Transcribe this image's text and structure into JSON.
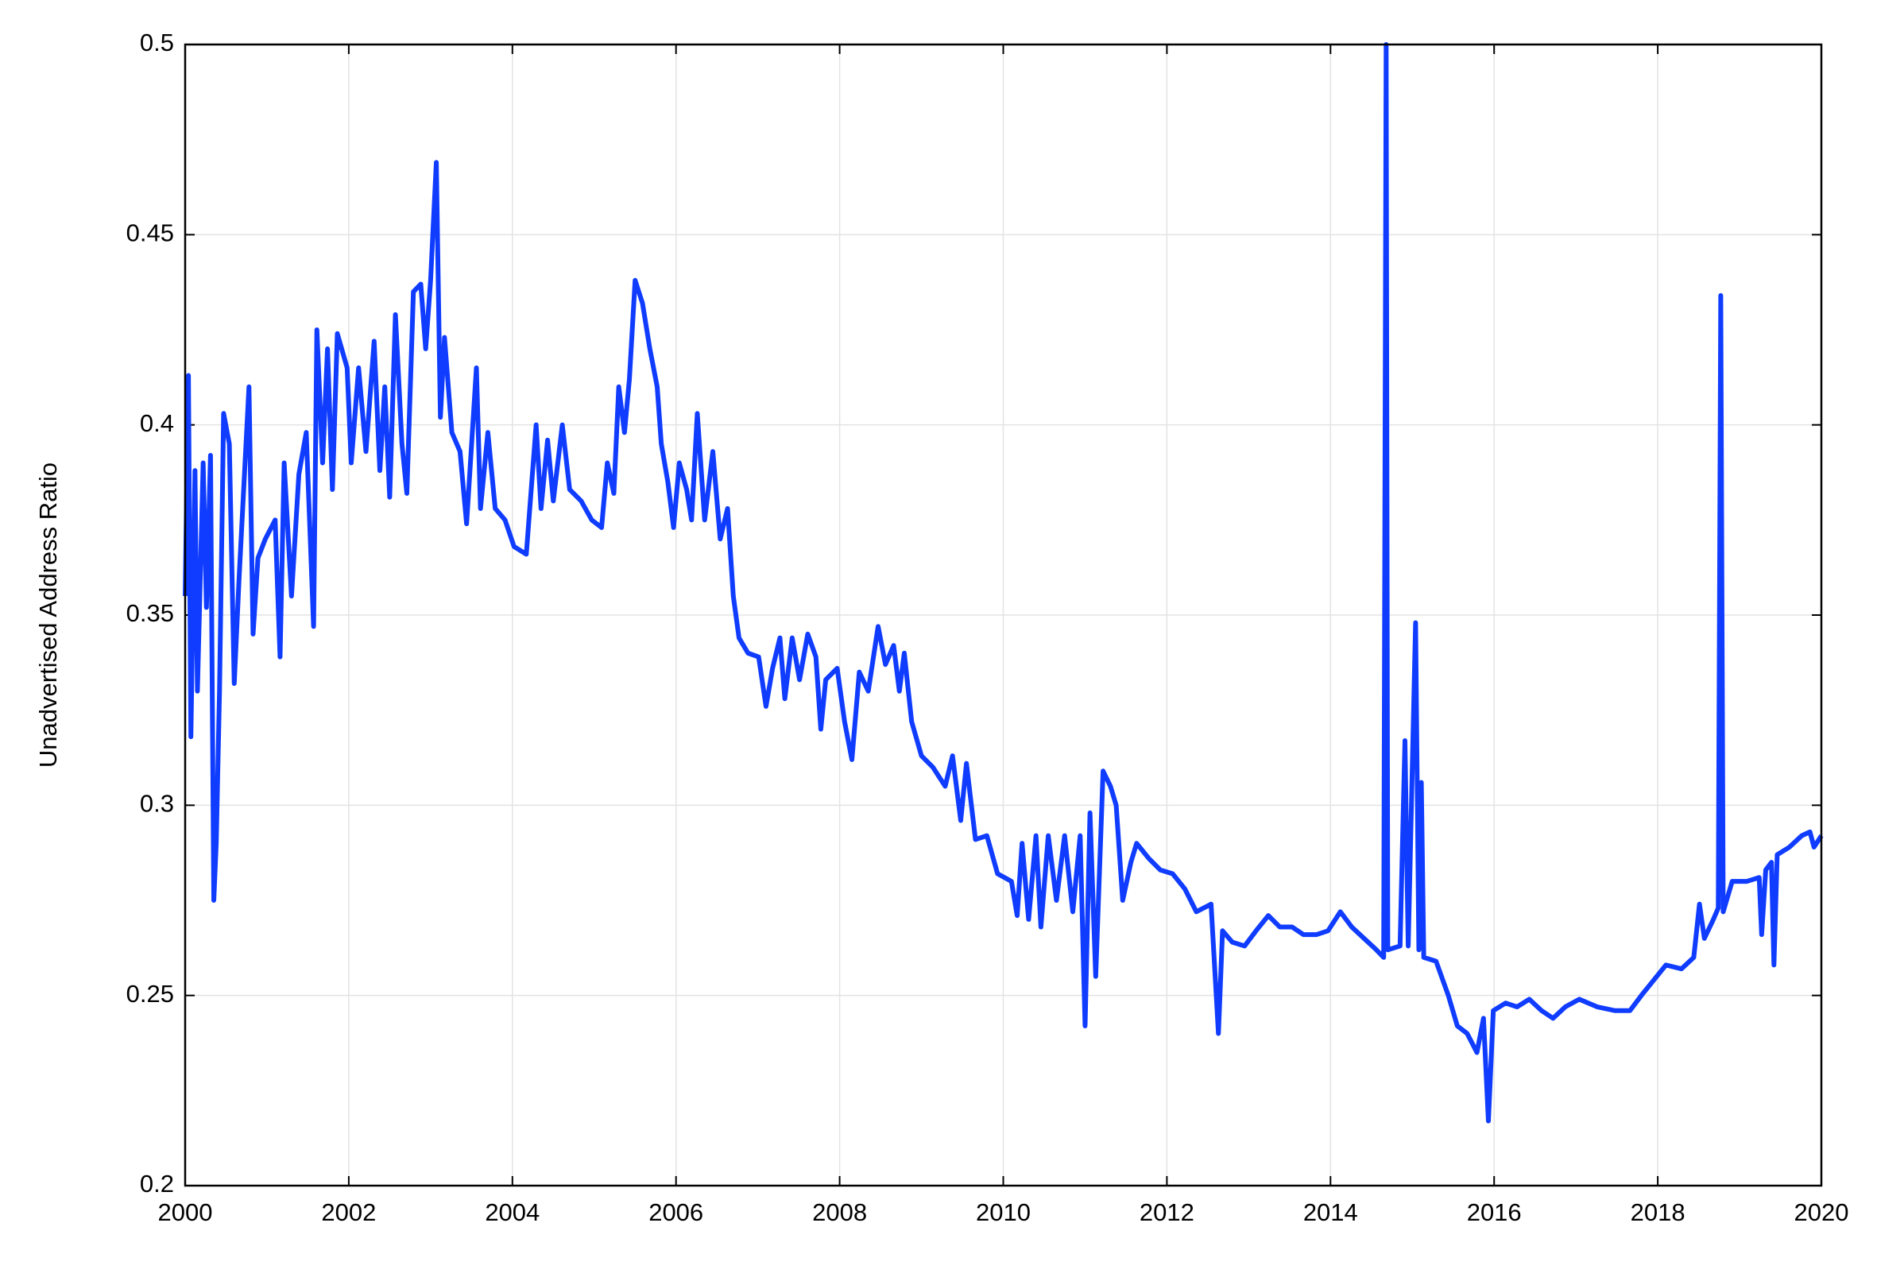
{
  "chart_data": {
    "type": "line",
    "y_label": "Unadvertised Address Ratio",
    "x": [
      2000.0,
      2000.04,
      2000.07,
      2000.12,
      2000.15,
      2000.22,
      2000.26,
      2000.31,
      2000.35,
      2000.38,
      2000.42,
      2000.47,
      2000.54,
      2000.6,
      2000.66,
      2000.78,
      2000.83,
      2000.89,
      2000.98,
      2001.1,
      2001.16,
      2001.21,
      2001.3,
      2001.39,
      2001.48,
      2001.57,
      2001.61,
      2001.68,
      2001.74,
      2001.8,
      2001.86,
      2001.98,
      2002.03,
      2002.12,
      2002.21,
      2002.31,
      2002.38,
      2002.44,
      2002.5,
      2002.57,
      2002.65,
      2002.71,
      2002.79,
      2002.88,
      2002.94,
      2003.0,
      2003.07,
      2003.12,
      2003.17,
      2003.26,
      2003.36,
      2003.44,
      2003.56,
      2003.61,
      2003.7,
      2003.79,
      2003.91,
      2004.02,
      2004.17,
      2004.29,
      2004.35,
      2004.43,
      2004.5,
      2004.61,
      2004.7,
      2004.84,
      2004.97,
      2005.09,
      2005.16,
      2005.24,
      2005.3,
      2005.37,
      2005.43,
      2005.5,
      2005.59,
      2005.68,
      2005.77,
      2005.82,
      2005.9,
      2005.97,
      2006.04,
      2006.13,
      2006.19,
      2006.26,
      2006.35,
      2006.45,
      2006.54,
      2006.63,
      2006.7,
      2006.77,
      2006.88,
      2007.01,
      2007.1,
      2007.18,
      2007.27,
      2007.33,
      2007.42,
      2007.51,
      2007.61,
      2007.71,
      2007.77,
      2007.83,
      2007.97,
      2008.06,
      2008.15,
      2008.24,
      2008.35,
      2008.47,
      2008.56,
      2008.66,
      2008.73,
      2008.79,
      2008.88,
      2009.0,
      2009.14,
      2009.29,
      2009.38,
      2009.48,
      2009.55,
      2009.66,
      2009.8,
      2009.93,
      2010.1,
      2010.17,
      2010.23,
      2010.31,
      2010.4,
      2010.46,
      2010.55,
      2010.65,
      2010.75,
      2010.85,
      2010.94,
      2011.0,
      2011.06,
      2011.13,
      2011.22,
      2011.31,
      2011.38,
      2011.46,
      2011.56,
      2011.63,
      2011.78,
      2011.92,
      2012.07,
      2012.22,
      2012.36,
      2012.54,
      2012.63,
      2012.68,
      2012.8,
      2012.95,
      2013.09,
      2013.24,
      2013.38,
      2013.53,
      2013.67,
      2013.83,
      2013.97,
      2014.12,
      2014.26,
      2014.41,
      2014.56,
      2014.65,
      2014.68,
      2014.7,
      2014.85,
      2014.91,
      2014.95,
      2015.04,
      2015.08,
      2015.11,
      2015.14,
      2015.29,
      2015.44,
      2015.55,
      2015.67,
      2015.79,
      2015.87,
      2015.93,
      2015.99,
      2016.14,
      2016.28,
      2016.43,
      2016.58,
      2016.72,
      2016.87,
      2017.04,
      2017.26,
      2017.48,
      2017.66,
      2017.8,
      2017.95,
      2018.1,
      2018.29,
      2018.44,
      2018.51,
      2018.57,
      2018.68,
      2018.74,
      2018.77,
      2018.8,
      2018.91,
      2019.09,
      2019.24,
      2019.27,
      2019.32,
      2019.39,
      2019.42,
      2019.46,
      2019.61,
      2019.76,
      2019.86,
      2019.91,
      2020.0
    ],
    "values": [
      0.355,
      0.413,
      0.318,
      0.388,
      0.33,
      0.39,
      0.352,
      0.392,
      0.275,
      0.29,
      0.33,
      0.403,
      0.395,
      0.332,
      0.36,
      0.41,
      0.345,
      0.365,
      0.37,
      0.375,
      0.339,
      0.39,
      0.355,
      0.387,
      0.398,
      0.347,
      0.425,
      0.39,
      0.42,
      0.383,
      0.424,
      0.415,
      0.39,
      0.415,
      0.393,
      0.422,
      0.388,
      0.41,
      0.381,
      0.429,
      0.395,
      0.382,
      0.435,
      0.437,
      0.42,
      0.438,
      0.469,
      0.402,
      0.423,
      0.398,
      0.393,
      0.374,
      0.415,
      0.378,
      0.398,
      0.378,
      0.375,
      0.368,
      0.366,
      0.4,
      0.378,
      0.396,
      0.38,
      0.4,
      0.383,
      0.38,
      0.375,
      0.373,
      0.39,
      0.382,
      0.41,
      0.398,
      0.412,
      0.438,
      0.432,
      0.42,
      0.41,
      0.395,
      0.385,
      0.373,
      0.39,
      0.383,
      0.375,
      0.403,
      0.375,
      0.393,
      0.37,
      0.378,
      0.355,
      0.344,
      0.34,
      0.339,
      0.326,
      0.336,
      0.344,
      0.328,
      0.344,
      0.333,
      0.345,
      0.339,
      0.32,
      0.333,
      0.336,
      0.322,
      0.312,
      0.335,
      0.33,
      0.347,
      0.337,
      0.342,
      0.33,
      0.34,
      0.322,
      0.313,
      0.31,
      0.305,
      0.313,
      0.296,
      0.311,
      0.291,
      0.292,
      0.282,
      0.28,
      0.271,
      0.29,
      0.27,
      0.292,
      0.268,
      0.292,
      0.275,
      0.292,
      0.272,
      0.292,
      0.242,
      0.298,
      0.255,
      0.309,
      0.305,
      0.3,
      0.275,
      0.285,
      0.29,
      0.286,
      0.283,
      0.282,
      0.278,
      0.272,
      0.274,
      0.24,
      0.267,
      0.264,
      0.263,
      0.267,
      0.271,
      0.268,
      0.268,
      0.266,
      0.266,
      0.267,
      0.272,
      0.268,
      0.265,
      0.262,
      0.26,
      0.5,
      0.262,
      0.263,
      0.317,
      0.263,
      0.348,
      0.262,
      0.306,
      0.26,
      0.259,
      0.25,
      0.242,
      0.24,
      0.235,
      0.244,
      0.217,
      0.246,
      0.248,
      0.247,
      0.249,
      0.246,
      0.244,
      0.247,
      0.249,
      0.247,
      0.246,
      0.246,
      0.25,
      0.254,
      0.258,
      0.257,
      0.26,
      0.274,
      0.265,
      0.27,
      0.273,
      0.434,
      0.272,
      0.28,
      0.28,
      0.281,
      0.266,
      0.283,
      0.285,
      0.258,
      0.287,
      0.289,
      0.292,
      0.293,
      0.289,
      0.292
    ],
    "color": "#0f3cff",
    "xlim": [
      2000,
      2020
    ],
    "ylim": [
      0.2,
      0.5
    ],
    "xticks": [
      2000,
      2002,
      2004,
      2006,
      2008,
      2010,
      2012,
      2014,
      2016,
      2018,
      2020
    ],
    "yticks": [
      0.2,
      0.25,
      0.3,
      0.35,
      0.4,
      0.45,
      0.5
    ],
    "grid": true
  }
}
